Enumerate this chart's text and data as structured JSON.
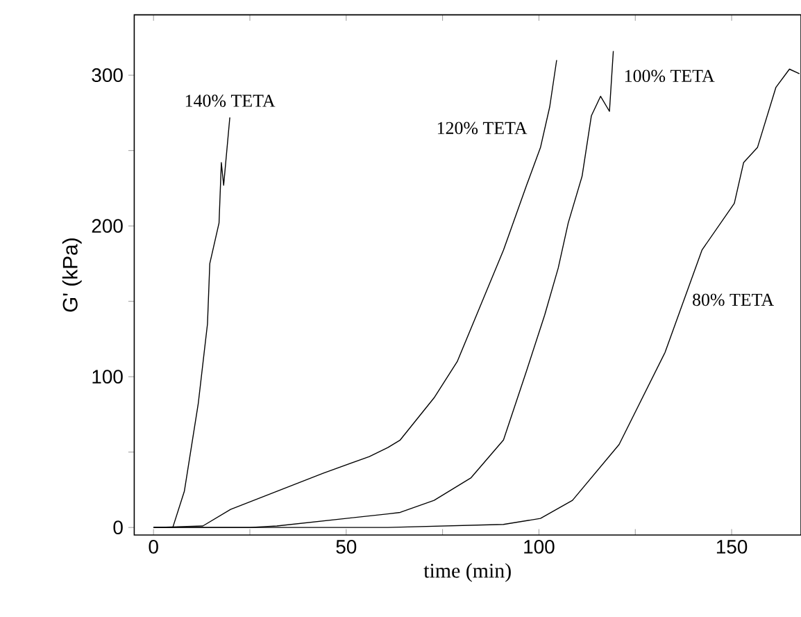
{
  "chart_data": {
    "type": "line",
    "xlabel": "time (min)",
    "ylabel": "G' (kPa)",
    "xlim": [
      -5,
      168
    ],
    "ylim": [
      -5,
      340
    ],
    "xticks": [
      0,
      {
        "value": 25,
        "label": null
      },
      50,
      {
        "value": 75,
        "label": null
      },
      100,
      {
        "value": 125,
        "label": null
      },
      150
    ],
    "yticks": [
      0,
      {
        "value": 50,
        "label": null
      },
      100,
      {
        "value": 150,
        "label": null
      },
      200,
      {
        "value": 250,
        "label": null
      },
      300
    ],
    "grid": false,
    "marker": "none",
    "line_style": "solid",
    "series": [
      {
        "name": "140% TETA",
        "color": "#000000",
        "x": [
          0,
          5.0,
          8.0,
          11.6,
          14.0,
          14.6,
          17.0,
          17.6,
          18.2,
          19.8
        ],
        "values": [
          0,
          0,
          24,
          82,
          135,
          175,
          202,
          242,
          227,
          272
        ]
      },
      {
        "name": "120% TETA",
        "color": "#000000",
        "x": [
          0,
          12.8,
          20,
          32,
          44,
          56,
          60.8,
          64,
          72.8,
          78.8,
          84.8,
          90.8,
          96.8,
          100.4,
          102.8,
          104.6
        ],
        "values": [
          0,
          1,
          12,
          24,
          36,
          47,
          53,
          58,
          86,
          110,
          147,
          184,
          227,
          252,
          279,
          310
        ]
      },
      {
        "name": "100% TETA",
        "color": "#000000",
        "x": [
          0,
          25,
          32,
          50,
          60.8,
          64,
          72.8,
          82.4,
          90.8,
          96.8,
          101.5,
          105,
          107.6,
          111.2,
          113.6,
          116,
          118.3,
          119.3
        ],
        "values": [
          0,
          0,
          1,
          6,
          9,
          10,
          18,
          33,
          58,
          104,
          141,
          172,
          202,
          233,
          273,
          286,
          276,
          316
        ]
      },
      {
        "name": "80% TETA",
        "color": "#000000",
        "x": [
          0,
          60.8,
          90.8,
          100.4,
          108.7,
          120.8,
          132.7,
          142.3,
          150.7,
          153.1,
          156.7,
          161.5,
          165,
          167.6
        ],
        "values": [
          0,
          0,
          2,
          6,
          18,
          55,
          116,
          184,
          215,
          242,
          252,
          292,
          304,
          301
        ]
      }
    ]
  }
}
